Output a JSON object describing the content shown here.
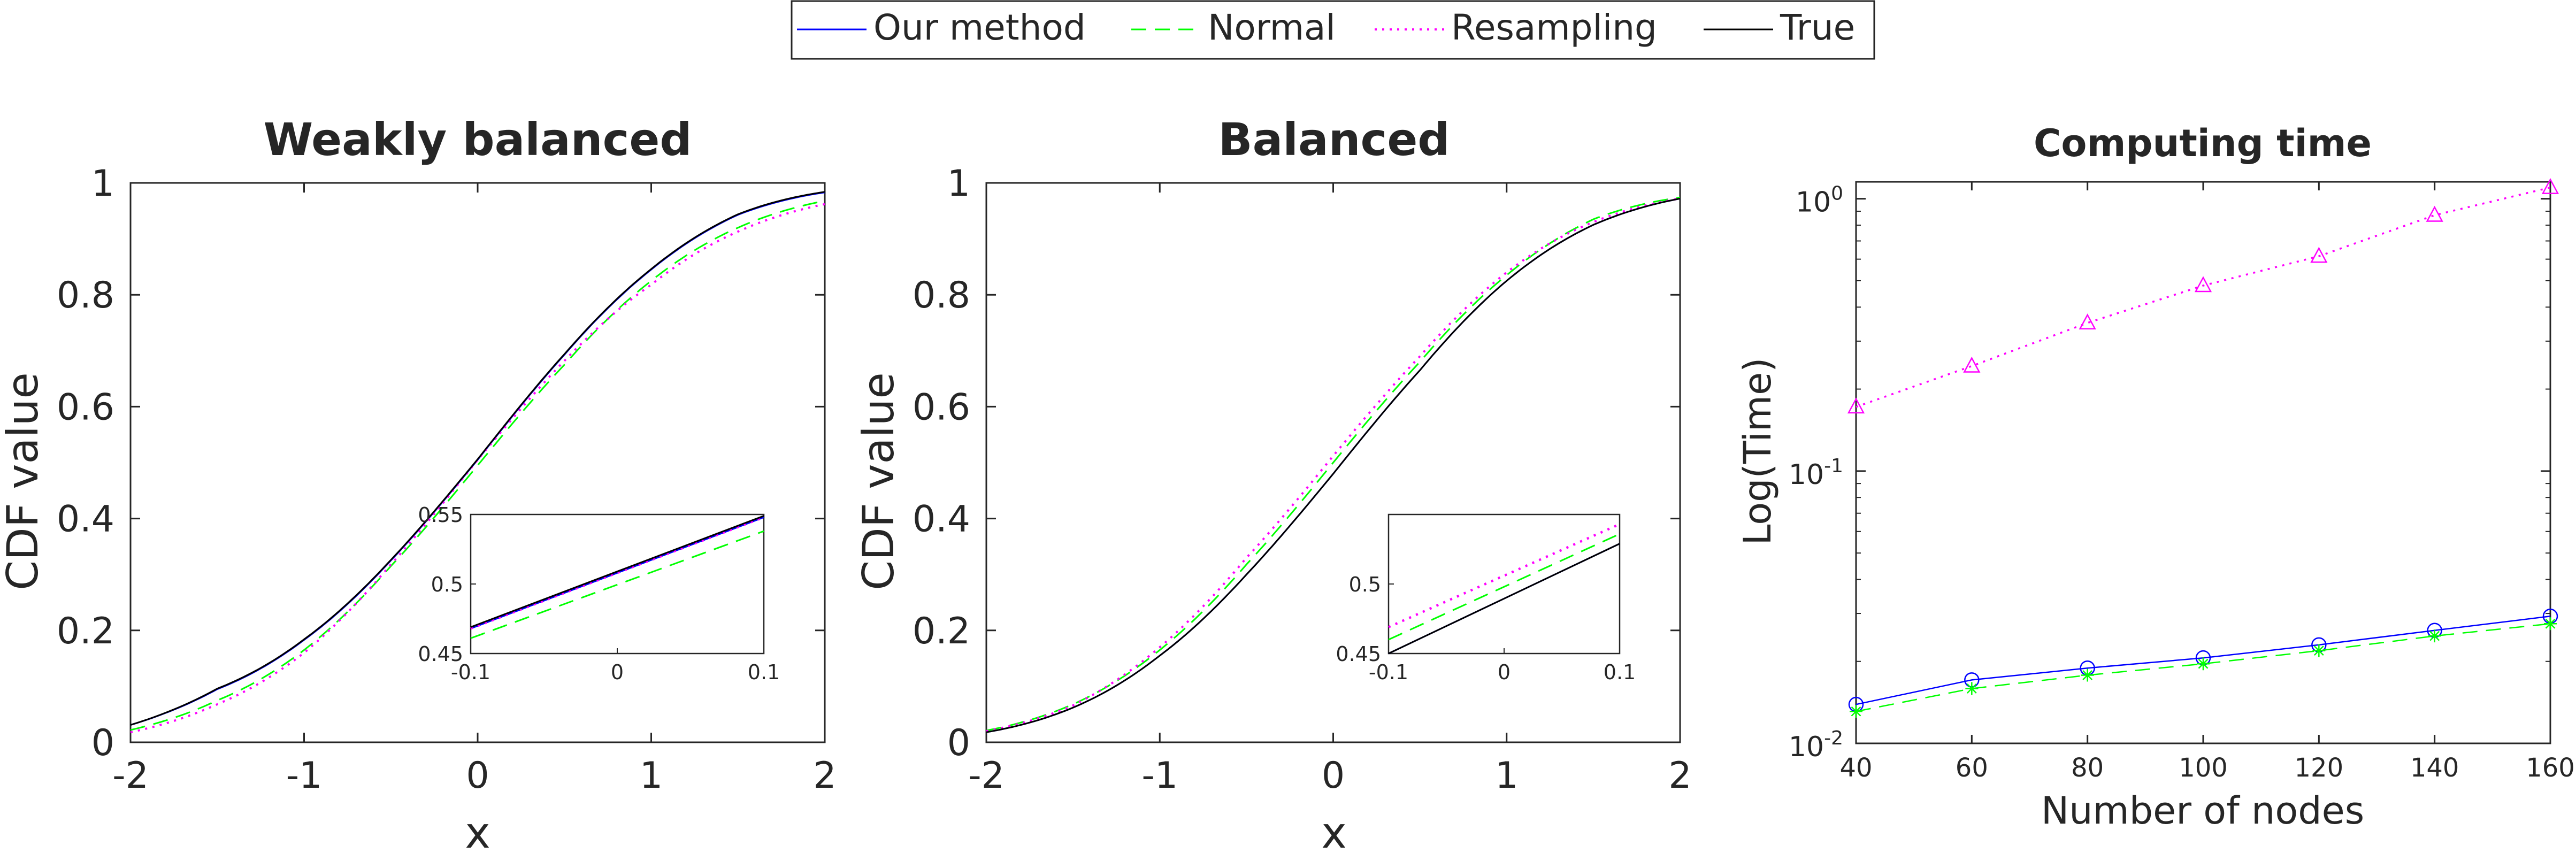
{
  "legend": {
    "placement": "top-center",
    "entries": [
      {
        "label": "Our method",
        "color": "#0000ff",
        "dash": "solid"
      },
      {
        "label": "Normal",
        "color": "#00ff00",
        "dash": "dashed"
      },
      {
        "label": "Resampling",
        "color": "#ff00ff",
        "dash": "dotted"
      },
      {
        "label": "True",
        "color": "#000000",
        "dash": "solid"
      }
    ]
  },
  "chart_data": [
    {
      "type": "line",
      "title": "Weakly balanced",
      "xlabel": "x",
      "ylabel": "CDF value",
      "xlim": [
        -2,
        2
      ],
      "ylim": [
        0,
        1
      ],
      "xticks": [
        "-2",
        "-1",
        "0",
        "1",
        "2"
      ],
      "yticks": [
        "0",
        "0.2",
        "0.4",
        "0.6",
        "0.8",
        "1"
      ],
      "grid": false,
      "x": [
        -2,
        -1.5,
        -1,
        -0.5,
        0,
        0.5,
        1,
        1.5,
        2
      ],
      "series": [
        {
          "name": "Our method",
          "values": [
            0.031,
            0.095,
            0.183,
            0.325,
            0.505,
            0.693,
            0.845,
            0.943,
            0.983
          ]
        },
        {
          "name": "Normal",
          "values": [
            0.022,
            0.075,
            0.165,
            0.315,
            0.495,
            0.675,
            0.825,
            0.92,
            0.968
          ]
        },
        {
          "name": "Resampling",
          "values": [
            0.018,
            0.068,
            0.16,
            0.318,
            0.505,
            0.682,
            0.818,
            0.913,
            0.962
          ]
        },
        {
          "name": "True",
          "values": [
            0.031,
            0.096,
            0.184,
            0.326,
            0.506,
            0.694,
            0.846,
            0.944,
            0.984
          ]
        }
      ],
      "inset": {
        "xlim": [
          -0.1,
          0.1
        ],
        "ylim": [
          0.45,
          0.55
        ],
        "xticks": [
          "-0.1",
          "0",
          "0.1"
        ],
        "yticks": [
          "0.45",
          "0.5",
          "0.55"
        ],
        "x": [
          -0.1,
          0.1
        ],
        "series": [
          {
            "name": "Our method",
            "values": [
              0.468,
              0.548
            ]
          },
          {
            "name": "Normal",
            "values": [
              0.461,
              0.538
            ]
          },
          {
            "name": "Resampling",
            "values": [
              0.468,
              0.548
            ]
          },
          {
            "name": "True",
            "values": [
              0.469,
              0.549
            ]
          }
        ]
      }
    },
    {
      "type": "line",
      "title": "Balanced",
      "xlabel": "x",
      "ylabel": "CDF value",
      "xlim": [
        -2,
        2
      ],
      "ylim": [
        0,
        1
      ],
      "xticks": [
        "-2",
        "-1",
        "0",
        "1",
        "2"
      ],
      "yticks": [
        "0",
        "0.2",
        "0.4",
        "0.6",
        "0.8",
        "1"
      ],
      "grid": false,
      "x": [
        -2,
        -1.5,
        -1,
        -0.5,
        0,
        0.5,
        1,
        1.5,
        2
      ],
      "series": [
        {
          "name": "Our method",
          "values": [
            0.018,
            0.062,
            0.155,
            0.3,
            0.48,
            0.665,
            0.825,
            0.925,
            0.972
          ]
        },
        {
          "name": "Normal",
          "values": [
            0.021,
            0.068,
            0.165,
            0.318,
            0.5,
            0.68,
            0.835,
            0.935,
            0.974
          ]
        },
        {
          "name": "Resampling",
          "values": [
            0.02,
            0.066,
            0.17,
            0.33,
            0.512,
            0.69,
            0.84,
            0.93,
            0.972
          ]
        },
        {
          "name": "True",
          "values": [
            0.018,
            0.062,
            0.155,
            0.3,
            0.48,
            0.665,
            0.825,
            0.925,
            0.972
          ]
        }
      ],
      "inset": {
        "xlim": [
          -0.1,
          0.1
        ],
        "ylim": [
          0.45,
          0.55
        ],
        "xticks": [
          "-0.1",
          "0",
          "0.1"
        ],
        "yticks": [
          "0.45",
          "0.5"
        ],
        "x": [
          -0.1,
          0.1
        ],
        "series": [
          {
            "name": "Our method",
            "values": [
              0.45,
              0.529
            ]
          },
          {
            "name": "Normal",
            "values": [
              0.46,
              0.536
            ]
          },
          {
            "name": "Resampling",
            "values": [
              0.469,
              0.543
            ]
          },
          {
            "name": "True",
            "values": [
              0.45,
              0.529
            ]
          }
        ]
      }
    },
    {
      "type": "line",
      "title": "Computing time",
      "xlabel": "Number of nodes",
      "ylabel": "Log(Time)",
      "scale_y": "log",
      "xlim": [
        40,
        160
      ],
      "ylim": [
        0.01,
        1.0
      ],
      "xticks": [
        "40",
        "60",
        "80",
        "100",
        "120",
        "140",
        "160"
      ],
      "yticks": [
        {
          "value": 1,
          "base": "10",
          "exp": "0"
        },
        {
          "value": 0.1,
          "base": "10",
          "exp": "-1"
        },
        {
          "value": 0.01,
          "base": "10",
          "exp": "-2"
        }
      ],
      "grid": false,
      "x": [
        40,
        60,
        80,
        100,
        120,
        140,
        160
      ],
      "series": [
        {
          "name": "Our method",
          "marker": "circle",
          "values": [
            0.0139,
            0.0171,
            0.0189,
            0.0206,
            0.023,
            0.026,
            0.0293
          ]
        },
        {
          "name": "Normal",
          "marker": "star",
          "values": [
            0.0131,
            0.0159,
            0.0178,
            0.0196,
            0.0219,
            0.0248,
            0.0275
          ]
        },
        {
          "name": "Resampling",
          "marker": "triangle",
          "values": [
            0.172,
            0.243,
            0.35,
            0.48,
            0.615,
            0.87,
            1.1
          ]
        }
      ]
    }
  ]
}
